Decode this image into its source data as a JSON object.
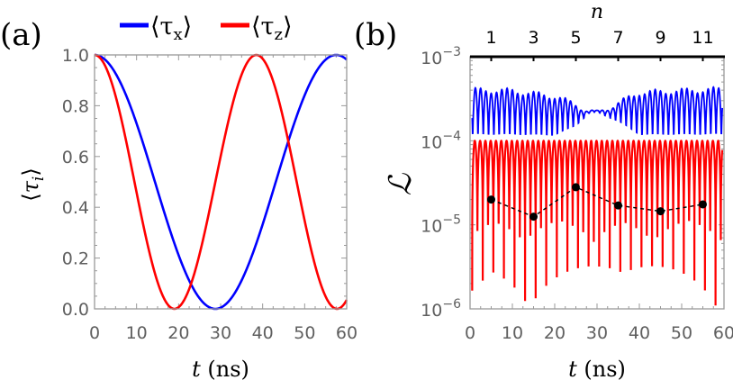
{
  "panel_labels": {
    "a": "(a)",
    "b": "(b)"
  },
  "legend": {
    "items": [
      {
        "label": "⟨τ",
        "sub": "x",
        "close": "⟩",
        "color": "#0000ff"
      },
      {
        "label": "⟨τ",
        "sub": "z",
        "close": "⟩",
        "color": "#ff0000"
      }
    ]
  },
  "colors": {
    "blue": "#0000ff",
    "red": "#ff0000",
    "frame": "#999999",
    "tick_text": "#5f5f5f",
    "marker": "#000000"
  },
  "chart_data": [
    {
      "id": "a",
      "type": "line",
      "title": "",
      "xlabel": "t (ns)",
      "ylabel": "⟨τi⟩",
      "xlim": [
        0,
        60
      ],
      "ylim": [
        0,
        1
      ],
      "xticks": [
        "0",
        "10",
        "20",
        "30",
        "40",
        "50",
        "60"
      ],
      "yticks": [
        "0.0",
        "0.2",
        "0.4",
        "0.6",
        "0.8",
        "1.0"
      ],
      "grid": false,
      "legend_position": "top",
      "series": [
        {
          "name": "⟨τx⟩",
          "color": "#0000ff",
          "x": [
            0,
            5,
            10,
            15,
            20,
            25,
            29,
            35,
            40,
            45,
            50,
            55,
            57,
            60
          ],
          "y": [
            1.0,
            0.93,
            0.76,
            0.52,
            0.27,
            0.07,
            0.0,
            0.12,
            0.37,
            0.65,
            0.88,
            0.99,
            1.0,
            0.97
          ]
        },
        {
          "name": "⟨τz⟩",
          "color": "#ff0000",
          "x": [
            0,
            5,
            10,
            15,
            19,
            25,
            30,
            35,
            38.5,
            45,
            50,
            55,
            58,
            60
          ],
          "y": [
            1.0,
            0.85,
            0.5,
            0.15,
            0.0,
            0.29,
            0.73,
            0.97,
            1.0,
            0.64,
            0.2,
            0.0,
            0.0,
            0.05
          ]
        }
      ],
      "intersections": [
        {
          "x": 22.5,
          "y": 0.11
        },
        {
          "x": 46.5,
          "y": 0.66
        }
      ]
    },
    {
      "id": "b",
      "type": "line",
      "title": "",
      "xlabel": "t (ns)",
      "ylabel": "ℒ",
      "top_xlabel": "n",
      "yscale": "log",
      "xlim": [
        0,
        60
      ],
      "ylim": [
        1e-06,
        0.001
      ],
      "xticks": [
        "0",
        "10",
        "20",
        "30",
        "40",
        "50",
        "60"
      ],
      "yticks": [
        "10^-6",
        "10^-5",
        "10^-4",
        "10^-3"
      ],
      "top_xticks": [
        "1",
        "3",
        "5",
        "7",
        "9",
        "11"
      ],
      "top_xtick_positions": [
        5,
        15,
        25,
        35,
        45,
        55
      ],
      "grid": false,
      "series": [
        {
          "name": "blue oscillating envelope",
          "color": "#0000ff",
          "description": "rapid oscillation between envelope_low and envelope_high",
          "x": [
            0,
            10,
            20,
            25,
            28,
            30,
            35,
            40,
            50,
            60
          ],
          "envelope_high": [
            0.00043,
            0.00042,
            0.00036,
            0.00029,
            0.00024,
            0.00023,
            0.0003,
            0.0004,
            0.00042,
            0.00044
          ],
          "envelope_low": [
            0.0001,
            0.0001,
            0.0001,
            0.00014,
            0.00021,
            0.00022,
            0.00016,
            0.0001,
            0.0001,
            0.0001
          ]
        },
        {
          "name": "red oscillating",
          "color": "#ff0000",
          "description": "rapid oscillation with peaks at 1e-4 and dips down to ~1e-6",
          "peak": 0.0001,
          "dip_range": [
            1e-06,
            3e-06
          ]
        },
        {
          "name": "n markers (dashed)",
          "color": "#000000",
          "style": "dashed with points",
          "x": [
            5,
            15,
            25,
            35,
            45,
            55
          ],
          "n": [
            1,
            3,
            5,
            7,
            9,
            11
          ],
          "y": [
            2e-05,
            1.25e-05,
            2.8e-05,
            1.7e-05,
            1.45e-05,
            1.75e-05
          ]
        }
      ]
    }
  ]
}
